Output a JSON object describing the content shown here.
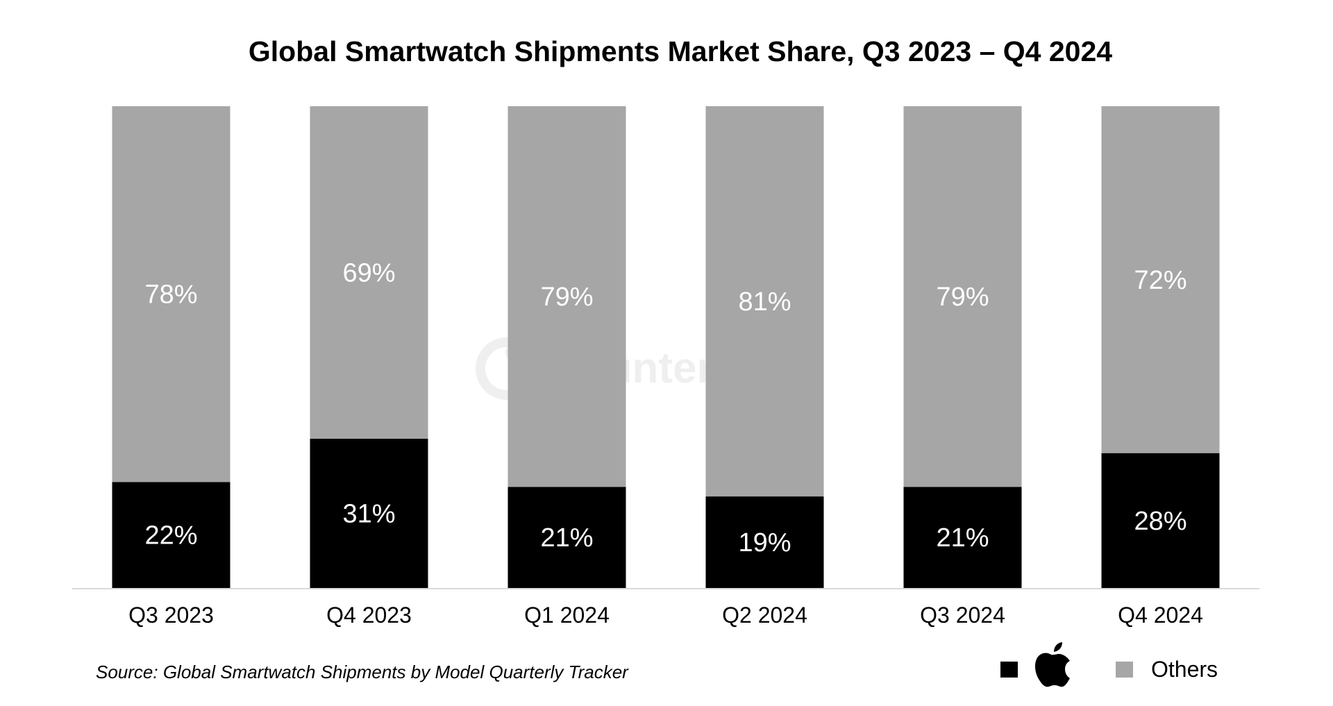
{
  "chart_data": {
    "type": "bar",
    "stacked": true,
    "title": "Global Smartwatch Shipments Market Share, Q3 2023 – Q4 2024",
    "categories": [
      "Q3 2023",
      "Q4 2023",
      "Q1 2024",
      "Q2 2024",
      "Q3 2024",
      "Q4 2024"
    ],
    "series": [
      {
        "name": "Apple",
        "legend_icon": "apple-logo-icon",
        "color": "#000000",
        "values": [
          22,
          31,
          21,
          19,
          21,
          28
        ],
        "labels": [
          "22%",
          "31%",
          "21%",
          "19%",
          "21%",
          "28%"
        ]
      },
      {
        "name": "Others",
        "color": "#a6a6a6",
        "values": [
          78,
          69,
          79,
          81,
          79,
          72
        ],
        "labels": [
          "78%",
          "69%",
          "79%",
          "81%",
          "79%",
          "72%"
        ]
      }
    ],
    "ylim": [
      0,
      100
    ],
    "xlabel": "",
    "ylabel": "",
    "grid": false,
    "legend_position": "bottom-right"
  },
  "legend": {
    "others_label": "Others"
  },
  "source": "Source: Global Smartwatch Shipments by Model Quarterly Tracker",
  "watermark": {
    "text": "Counterpoint",
    "icon": "counterpoint-logo-icon"
  },
  "colors": {
    "axis": "#d9d9d9",
    "label_on_bar": "#ffffff"
  }
}
